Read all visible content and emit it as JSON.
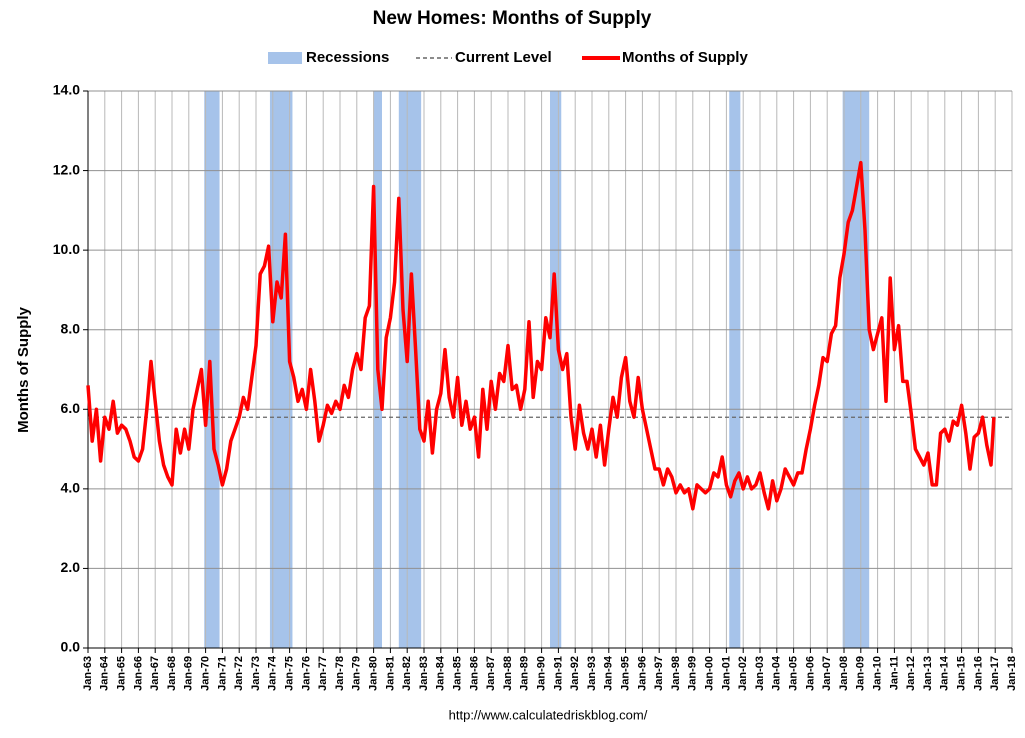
{
  "chart_data": {
    "type": "line",
    "title": "New Homes: Months of Supply",
    "y_label": "Months of Supply",
    "source": "http://www.calculatedriskblog.com/",
    "grid": true,
    "legend": "top",
    "recessions": {
      "name": "Recessions",
      "color": "#a6c3ea",
      "periods": [
        [
          1969.92,
          1970.83
        ],
        [
          1973.83,
          1975.17
        ],
        [
          1980.0,
          1980.5
        ],
        [
          1981.5,
          1982.83
        ],
        [
          1990.5,
          1991.17
        ],
        [
          2001.17,
          2001.83
        ],
        [
          2007.92,
          2009.5
        ]
      ]
    },
    "current_level": {
      "name": "Current Level",
      "value": 5.8,
      "color": "#666666"
    },
    "x": [
      1963,
      1963.25,
      1963.5,
      1963.75,
      1964,
      1964.25,
      1964.5,
      1964.75,
      1965,
      1965.25,
      1965.5,
      1965.75,
      1966,
      1966.25,
      1966.5,
      1966.75,
      1967,
      1967.25,
      1967.5,
      1967.75,
      1968,
      1968.25,
      1968.5,
      1968.75,
      1969,
      1969.25,
      1969.5,
      1969.75,
      1970,
      1970.25,
      1970.5,
      1970.75,
      1971,
      1971.25,
      1971.5,
      1971.75,
      1972,
      1972.25,
      1972.5,
      1972.75,
      1973,
      1973.25,
      1973.5,
      1973.75,
      1974,
      1974.25,
      1974.5,
      1974.75,
      1975,
      1975.25,
      1975.5,
      1975.75,
      1976,
      1976.25,
      1976.5,
      1976.75,
      1977,
      1977.25,
      1977.5,
      1977.75,
      1978,
      1978.25,
      1978.5,
      1978.75,
      1979,
      1979.25,
      1979.5,
      1979.75,
      1980,
      1980.25,
      1980.5,
      1980.75,
      1981,
      1981.25,
      1981.5,
      1981.75,
      1982,
      1982.25,
      1982.5,
      1982.75,
      1983,
      1983.25,
      1983.5,
      1983.75,
      1984,
      1984.25,
      1984.5,
      1984.75,
      1985,
      1985.25,
      1985.5,
      1985.75,
      1986,
      1986.25,
      1986.5,
      1986.75,
      1987,
      1987.25,
      1987.5,
      1987.75,
      1988,
      1988.25,
      1988.5,
      1988.75,
      1989,
      1989.25,
      1989.5,
      1989.75,
      1990,
      1990.25,
      1990.5,
      1990.75,
      1991,
      1991.25,
      1991.5,
      1991.75,
      1992,
      1992.25,
      1992.5,
      1992.75,
      1993,
      1993.25,
      1993.5,
      1993.75,
      1994,
      1994.25,
      1994.5,
      1994.75,
      1995,
      1995.25,
      1995.5,
      1995.75,
      1996,
      1996.25,
      1996.5,
      1996.75,
      1997,
      1997.25,
      1997.5,
      1997.75,
      1998,
      1998.25,
      1998.5,
      1998.75,
      1999,
      1999.25,
      1999.5,
      1999.75,
      2000,
      2000.25,
      2000.5,
      2000.75,
      2001,
      2001.25,
      2001.5,
      2001.75,
      2002,
      2002.25,
      2002.5,
      2002.75,
      2003,
      2003.25,
      2003.5,
      2003.75,
      2004,
      2004.25,
      2004.5,
      2004.75,
      2005,
      2005.25,
      2005.5,
      2005.75,
      2006,
      2006.25,
      2006.5,
      2006.75,
      2007,
      2007.25,
      2007.5,
      2007.75,
      2008,
      2008.25,
      2008.5,
      2008.75,
      2009,
      2009.25,
      2009.5,
      2009.75,
      2010,
      2010.25,
      2010.5,
      2010.75,
      2011,
      2011.25,
      2011.5,
      2011.75,
      2012,
      2012.25,
      2012.5,
      2012.75,
      2013,
      2013.25,
      2013.5,
      2013.75,
      2014,
      2014.25,
      2014.5,
      2014.75,
      2015,
      2015.25,
      2015.5,
      2015.75,
      2016,
      2016.25,
      2016.5,
      2016.75,
      2016.92
    ],
    "series": [
      {
        "name": "Months of Supply",
        "color": "#ff0000",
        "values": [
          6.6,
          5.2,
          6.0,
          4.7,
          5.8,
          5.5,
          6.2,
          5.4,
          5.6,
          5.5,
          5.2,
          4.8,
          4.7,
          5.0,
          6.0,
          7.2,
          6.2,
          5.2,
          4.6,
          4.3,
          4.1,
          5.5,
          4.9,
          5.5,
          5.0,
          6.0,
          6.5,
          7.0,
          5.6,
          7.2,
          5.0,
          4.6,
          4.1,
          4.5,
          5.2,
          5.5,
          5.8,
          6.3,
          6.0,
          6.8,
          7.6,
          9.4,
          9.6,
          10.1,
          8.2,
          9.2,
          8.8,
          10.4,
          7.2,
          6.8,
          6.2,
          6.5,
          6.0,
          7.0,
          6.2,
          5.2,
          5.6,
          6.1,
          5.9,
          6.2,
          6.0,
          6.6,
          6.3,
          7.0,
          7.4,
          7.0,
          8.3,
          8.6,
          11.6,
          7.0,
          6.0,
          7.8,
          8.3,
          9.2,
          11.3,
          8.5,
          7.2,
          9.4,
          7.5,
          5.5,
          5.2,
          6.2,
          4.9,
          6.0,
          6.4,
          7.5,
          6.3,
          5.8,
          6.8,
          5.6,
          6.2,
          5.5,
          5.8,
          4.8,
          6.5,
          5.5,
          6.7,
          6.0,
          6.9,
          6.7,
          7.6,
          6.5,
          6.6,
          6.0,
          6.5,
          8.2,
          6.3,
          7.2,
          7.0,
          8.3,
          7.8,
          9.4,
          7.5,
          7.0,
          7.4,
          5.8,
          5.0,
          6.1,
          5.4,
          5.0,
          5.5,
          4.8,
          5.6,
          4.6,
          5.5,
          6.3,
          5.8,
          6.8,
          7.3,
          6.2,
          5.8,
          6.8,
          6.0,
          5.5,
          5.0,
          4.5,
          4.5,
          4.1,
          4.5,
          4.3,
          3.9,
          4.1,
          3.9,
          4.0,
          3.5,
          4.1,
          4.0,
          3.9,
          4.0,
          4.4,
          4.3,
          4.8,
          4.1,
          3.8,
          4.2,
          4.4,
          4.0,
          4.3,
          4.0,
          4.1,
          4.4,
          3.9,
          3.5,
          4.2,
          3.7,
          4.0,
          4.5,
          4.3,
          4.1,
          4.4,
          4.4,
          5.0,
          5.5,
          6.1,
          6.6,
          7.3,
          7.2,
          7.9,
          8.1,
          9.3,
          9.9,
          10.7,
          11.0,
          11.6,
          12.2,
          10.5,
          8.0,
          7.5,
          7.9,
          8.3,
          6.2,
          9.3,
          7.5,
          8.1,
          6.7,
          6.7,
          5.9,
          5.0,
          4.8,
          4.6,
          4.9,
          4.1,
          4.1,
          5.4,
          5.5,
          5.2,
          5.7,
          5.6,
          6.1,
          5.4,
          4.5,
          5.3,
          5.4,
          5.8,
          5.1,
          4.6,
          5.8
        ]
      }
    ],
    "xlim": [
      1963,
      2018
    ],
    "xticks": [
      {
        "value": 1963,
        "label": "Jan-63"
      },
      {
        "value": 1964,
        "label": "Jan-64"
      },
      {
        "value": 1965,
        "label": "Jan-65"
      },
      {
        "value": 1966,
        "label": "Jan-66"
      },
      {
        "value": 1967,
        "label": "Jan-67"
      },
      {
        "value": 1968,
        "label": "Jan-68"
      },
      {
        "value": 1969,
        "label": "Jan-69"
      },
      {
        "value": 1970,
        "label": "Jan-70"
      },
      {
        "value": 1971,
        "label": "Jan-71"
      },
      {
        "value": 1972,
        "label": "Jan-72"
      },
      {
        "value": 1973,
        "label": "Jan-73"
      },
      {
        "value": 1974,
        "label": "Jan-74"
      },
      {
        "value": 1975,
        "label": "Jan-75"
      },
      {
        "value": 1976,
        "label": "Jan-76"
      },
      {
        "value": 1977,
        "label": "Jan-77"
      },
      {
        "value": 1978,
        "label": "Jan-78"
      },
      {
        "value": 1979,
        "label": "Jan-79"
      },
      {
        "value": 1980,
        "label": "Jan-80"
      },
      {
        "value": 1981,
        "label": "Jan-81"
      },
      {
        "value": 1982,
        "label": "Jan-82"
      },
      {
        "value": 1983,
        "label": "Jan-83"
      },
      {
        "value": 1984,
        "label": "Jan-84"
      },
      {
        "value": 1985,
        "label": "Jan-85"
      },
      {
        "value": 1986,
        "label": "Jan-86"
      },
      {
        "value": 1987,
        "label": "Jan-87"
      },
      {
        "value": 1988,
        "label": "Jan-88"
      },
      {
        "value": 1989,
        "label": "Jan-89"
      },
      {
        "value": 1990,
        "label": "Jan-90"
      },
      {
        "value": 1991,
        "label": "Jan-91"
      },
      {
        "value": 1992,
        "label": "Jan-92"
      },
      {
        "value": 1993,
        "label": "Jan-93"
      },
      {
        "value": 1994,
        "label": "Jan-94"
      },
      {
        "value": 1995,
        "label": "Jan-95"
      },
      {
        "value": 1996,
        "label": "Jan-96"
      },
      {
        "value": 1997,
        "label": "Jan-97"
      },
      {
        "value": 1998,
        "label": "Jan-98"
      },
      {
        "value": 1999,
        "label": "Jan-99"
      },
      {
        "value": 2000,
        "label": "Jan-00"
      },
      {
        "value": 2001,
        "label": "Jan-01"
      },
      {
        "value": 2002,
        "label": "Jan-02"
      },
      {
        "value": 2003,
        "label": "Jan-03"
      },
      {
        "value": 2004,
        "label": "Jan-04"
      },
      {
        "value": 2005,
        "label": "Jan-05"
      },
      {
        "value": 2006,
        "label": "Jan-06"
      },
      {
        "value": 2007,
        "label": "Jan-07"
      },
      {
        "value": 2008,
        "label": "Jan-08"
      },
      {
        "value": 2009,
        "label": "Jan-09"
      },
      {
        "value": 2010,
        "label": "Jan-10"
      },
      {
        "value": 2011,
        "label": "Jan-11"
      },
      {
        "value": 2012,
        "label": "Jan-12"
      },
      {
        "value": 2013,
        "label": "Jan-13"
      },
      {
        "value": 2014,
        "label": "Jan-14"
      },
      {
        "value": 2015,
        "label": "Jan-15"
      },
      {
        "value": 2016,
        "label": "Jan-16"
      },
      {
        "value": 2017,
        "label": "Jan-17"
      },
      {
        "value": 2018,
        "label": "Jan-18"
      }
    ],
    "ylim": [
      0,
      14
    ],
    "yticks": [
      {
        "value": 0,
        "label": "0.0"
      },
      {
        "value": 2,
        "label": "2.0"
      },
      {
        "value": 4,
        "label": "4.0"
      },
      {
        "value": 6,
        "label": "6.0"
      },
      {
        "value": 8,
        "label": "8.0"
      },
      {
        "value": 10,
        "label": "10.0"
      },
      {
        "value": 12,
        "label": "12.0"
      },
      {
        "value": 14,
        "label": "14.0"
      }
    ]
  }
}
